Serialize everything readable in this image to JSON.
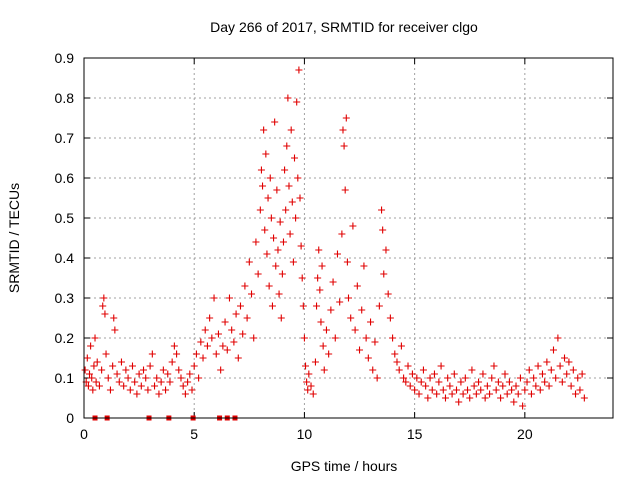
{
  "chart_data": {
    "type": "scatter",
    "title": "Day 266 of 2017, SRMTID for receiver clgo",
    "xlabel": "GPS time / hours",
    "ylabel": "SRMTID / TECUs",
    "xlim": [
      0,
      24
    ],
    "ylim": [
      0,
      0.9
    ],
    "xticks": [
      0,
      5,
      10,
      15,
      20
    ],
    "yticks": [
      0,
      0.1,
      0.2,
      0.3,
      0.4,
      0.5,
      0.6,
      0.7,
      0.8,
      0.9
    ],
    "ytick_labels": [
      "0",
      "0.1",
      "0.2",
      "0.3",
      "0.4",
      "0.5",
      "0.6",
      "0.7",
      "0.8",
      "0.9"
    ],
    "xtick_labels": [
      "0",
      "5",
      "10",
      "15",
      "20"
    ],
    "grid": true,
    "marker": "plus",
    "color": "#e00000",
    "zero_markers_x": [
      0.5,
      1.05,
      2.95,
      3.85,
      4.95,
      6.15,
      6.5,
      6.85
    ],
    "series": [
      {
        "name": "SRMTID",
        "points": [
          [
            0.05,
            0.12
          ],
          [
            0.1,
            0.09
          ],
          [
            0.15,
            0.15
          ],
          [
            0.2,
            0.08
          ],
          [
            0.25,
            0.11
          ],
          [
            0.3,
            0.18
          ],
          [
            0.35,
            0.1
          ],
          [
            0.4,
            0.07
          ],
          [
            0.45,
            0.13
          ],
          [
            0.5,
            0.2
          ],
          [
            0.55,
            0.09
          ],
          [
            0.6,
            0.14
          ],
          [
            0.7,
            0.08
          ],
          [
            0.8,
            0.12
          ],
          [
            0.85,
            0.28
          ],
          [
            0.9,
            0.3
          ],
          [
            0.95,
            0.26
          ],
          [
            1.0,
            0.16
          ],
          [
            1.1,
            0.1
          ],
          [
            1.2,
            0.07
          ],
          [
            1.3,
            0.13
          ],
          [
            1.35,
            0.25
          ],
          [
            1.4,
            0.22
          ],
          [
            1.5,
            0.11
          ],
          [
            1.6,
            0.09
          ],
          [
            1.7,
            0.14
          ],
          [
            1.8,
            0.08
          ],
          [
            1.9,
            0.12
          ],
          [
            2.0,
            0.1
          ],
          [
            2.1,
            0.07
          ],
          [
            2.2,
            0.13
          ],
          [
            2.3,
            0.09
          ],
          [
            2.4,
            0.06
          ],
          [
            2.5,
            0.11
          ],
          [
            2.6,
            0.08
          ],
          [
            2.7,
            0.12
          ],
          [
            2.8,
            0.1
          ],
          [
            2.9,
            0.07
          ],
          [
            3.0,
            0.13
          ],
          [
            3.1,
            0.16
          ],
          [
            3.2,
            0.08
          ],
          [
            3.3,
            0.1
          ],
          [
            3.4,
            0.06
          ],
          [
            3.5,
            0.09
          ],
          [
            3.6,
            0.12
          ],
          [
            3.7,
            0.07
          ],
          [
            3.8,
            0.11
          ],
          [
            3.9,
            0.09
          ],
          [
            4.0,
            0.14
          ],
          [
            4.1,
            0.18
          ],
          [
            4.2,
            0.16
          ],
          [
            4.3,
            0.12
          ],
          [
            4.4,
            0.1
          ],
          [
            4.5,
            0.08
          ],
          [
            4.6,
            0.06
          ],
          [
            4.7,
            0.09
          ],
          [
            4.8,
            0.11
          ],
          [
            4.9,
            0.07
          ],
          [
            5.0,
            0.13
          ],
          [
            5.1,
            0.16
          ],
          [
            5.2,
            0.1
          ],
          [
            5.3,
            0.19
          ],
          [
            5.4,
            0.15
          ],
          [
            5.5,
            0.22
          ],
          [
            5.6,
            0.18
          ],
          [
            5.7,
            0.25
          ],
          [
            5.8,
            0.2
          ],
          [
            5.9,
            0.3
          ],
          [
            6.0,
            0.16
          ],
          [
            6.1,
            0.21
          ],
          [
            6.2,
            0.12
          ],
          [
            6.3,
            0.18
          ],
          [
            6.4,
            0.24
          ],
          [
            6.5,
            0.17
          ],
          [
            6.6,
            0.3
          ],
          [
            6.7,
            0.22
          ],
          [
            6.8,
            0.19
          ],
          [
            6.9,
            0.26
          ],
          [
            7.0,
            0.15
          ],
          [
            7.1,
            0.28
          ],
          [
            7.2,
            0.21
          ],
          [
            7.3,
            0.33
          ],
          [
            7.4,
            0.25
          ],
          [
            7.5,
            0.39
          ],
          [
            7.6,
            0.31
          ],
          [
            7.7,
            0.2
          ],
          [
            7.8,
            0.44
          ],
          [
            7.9,
            0.36
          ],
          [
            8.0,
            0.52
          ],
          [
            8.05,
            0.62
          ],
          [
            8.1,
            0.58
          ],
          [
            8.15,
            0.72
          ],
          [
            8.2,
            0.47
          ],
          [
            8.25,
            0.66
          ],
          [
            8.3,
            0.41
          ],
          [
            8.35,
            0.55
          ],
          [
            8.4,
            0.33
          ],
          [
            8.45,
            0.6
          ],
          [
            8.5,
            0.5
          ],
          [
            8.55,
            0.28
          ],
          [
            8.6,
            0.45
          ],
          [
            8.65,
            0.74
          ],
          [
            8.7,
            0.38
          ],
          [
            8.75,
            0.57
          ],
          [
            8.8,
            0.42
          ],
          [
            8.85,
            0.31
          ],
          [
            8.9,
            0.49
          ],
          [
            8.95,
            0.25
          ],
          [
            9.0,
            0.36
          ],
          [
            9.05,
            0.44
          ],
          [
            9.1,
            0.62
          ],
          [
            9.15,
            0.52
          ],
          [
            9.2,
            0.68
          ],
          [
            9.25,
            0.8
          ],
          [
            9.3,
            0.58
          ],
          [
            9.35,
            0.46
          ],
          [
            9.4,
            0.72
          ],
          [
            9.45,
            0.54
          ],
          [
            9.5,
            0.39
          ],
          [
            9.55,
            0.65
          ],
          [
            9.6,
            0.5
          ],
          [
            9.65,
            0.79
          ],
          [
            9.7,
            0.6
          ],
          [
            9.75,
            0.87
          ],
          [
            9.8,
            0.55
          ],
          [
            9.85,
            0.43
          ],
          [
            9.9,
            0.35
          ],
          [
            9.95,
            0.28
          ],
          [
            10.0,
            0.2
          ],
          [
            10.05,
            0.13
          ],
          [
            10.1,
            0.09
          ],
          [
            10.15,
            0.07
          ],
          [
            10.2,
            0.11
          ],
          [
            10.3,
            0.08
          ],
          [
            10.4,
            0.06
          ],
          [
            10.5,
            0.14
          ],
          [
            10.55,
            0.28
          ],
          [
            10.6,
            0.35
          ],
          [
            10.65,
            0.42
          ],
          [
            10.7,
            0.32
          ],
          [
            10.75,
            0.24
          ],
          [
            10.8,
            0.38
          ],
          [
            10.85,
            0.18
          ],
          [
            10.9,
            0.12
          ],
          [
            11.0,
            0.22
          ],
          [
            11.1,
            0.16
          ],
          [
            11.2,
            0.27
          ],
          [
            11.3,
            0.34
          ],
          [
            11.4,
            0.2
          ],
          [
            11.5,
            0.41
          ],
          [
            11.6,
            0.29
          ],
          [
            11.7,
            0.46
          ],
          [
            11.75,
            0.72
          ],
          [
            11.8,
            0.68
          ],
          [
            11.85,
            0.57
          ],
          [
            11.9,
            0.75
          ],
          [
            11.95,
            0.39
          ],
          [
            12.0,
            0.3
          ],
          [
            12.1,
            0.25
          ],
          [
            12.2,
            0.48
          ],
          [
            12.3,
            0.22
          ],
          [
            12.4,
            0.33
          ],
          [
            12.5,
            0.17
          ],
          [
            12.6,
            0.27
          ],
          [
            12.7,
            0.38
          ],
          [
            12.8,
            0.2
          ],
          [
            12.9,
            0.15
          ],
          [
            13.0,
            0.24
          ],
          [
            13.1,
            0.12
          ],
          [
            13.2,
            0.19
          ],
          [
            13.3,
            0.1
          ],
          [
            13.4,
            0.28
          ],
          [
            13.5,
            0.52
          ],
          [
            13.55,
            0.47
          ],
          [
            13.6,
            0.36
          ],
          [
            13.7,
            0.42
          ],
          [
            13.8,
            0.31
          ],
          [
            13.9,
            0.25
          ],
          [
            14.0,
            0.2
          ],
          [
            14.1,
            0.16
          ],
          [
            14.2,
            0.14
          ],
          [
            14.3,
            0.12
          ],
          [
            14.4,
            0.18
          ],
          [
            14.5,
            0.1
          ],
          [
            14.6,
            0.09
          ],
          [
            14.7,
            0.13
          ],
          [
            14.8,
            0.08
          ],
          [
            14.9,
            0.11
          ],
          [
            15.0,
            0.07
          ],
          [
            15.1,
            0.1
          ],
          [
            15.2,
            0.06
          ],
          [
            15.3,
            0.09
          ],
          [
            15.4,
            0.12
          ],
          [
            15.5,
            0.08
          ],
          [
            15.6,
            0.05
          ],
          [
            15.7,
            0.1
          ],
          [
            15.8,
            0.07
          ],
          [
            15.9,
            0.11
          ],
          [
            16.0,
            0.06
          ],
          [
            16.1,
            0.09
          ],
          [
            16.2,
            0.13
          ],
          [
            16.3,
            0.07
          ],
          [
            16.4,
            0.05
          ],
          [
            16.5,
            0.1
          ],
          [
            16.6,
            0.08
          ],
          [
            16.7,
            0.06
          ],
          [
            16.8,
            0.11
          ],
          [
            16.9,
            0.07
          ],
          [
            17.0,
            0.04
          ],
          [
            17.1,
            0.09
          ],
          [
            17.2,
            0.06
          ],
          [
            17.3,
            0.1
          ],
          [
            17.4,
            0.07
          ],
          [
            17.5,
            0.05
          ],
          [
            17.6,
            0.12
          ],
          [
            17.7,
            0.08
          ],
          [
            17.8,
            0.06
          ],
          [
            17.9,
            0.09
          ],
          [
            18.0,
            0.07
          ],
          [
            18.1,
            0.11
          ],
          [
            18.2,
            0.05
          ],
          [
            18.3,
            0.08
          ],
          [
            18.4,
            0.06
          ],
          [
            18.5,
            0.1
          ],
          [
            18.6,
            0.13
          ],
          [
            18.7,
            0.07
          ],
          [
            18.8,
            0.09
          ],
          [
            18.9,
            0.05
          ],
          [
            19.0,
            0.08
          ],
          [
            19.1,
            0.11
          ],
          [
            19.2,
            0.06
          ],
          [
            19.3,
            0.09
          ],
          [
            19.4,
            0.07
          ],
          [
            19.5,
            0.04
          ],
          [
            19.6,
            0.08
          ],
          [
            19.7,
            0.06
          ],
          [
            19.8,
            0.1
          ],
          [
            19.9,
            0.03
          ],
          [
            20.0,
            0.07
          ],
          [
            20.1,
            0.09
          ],
          [
            20.2,
            0.12
          ],
          [
            20.3,
            0.06
          ],
          [
            20.4,
            0.1
          ],
          [
            20.5,
            0.08
          ],
          [
            20.6,
            0.13
          ],
          [
            20.7,
            0.07
          ],
          [
            20.8,
            0.11
          ],
          [
            20.9,
            0.09
          ],
          [
            21.0,
            0.14
          ],
          [
            21.1,
            0.08
          ],
          [
            21.2,
            0.12
          ],
          [
            21.3,
            0.17
          ],
          [
            21.4,
            0.1
          ],
          [
            21.5,
            0.2
          ],
          [
            21.6,
            0.13
          ],
          [
            21.7,
            0.09
          ],
          [
            21.8,
            0.15
          ],
          [
            21.9,
            0.11
          ],
          [
            22.0,
            0.14
          ],
          [
            22.1,
            0.08
          ],
          [
            22.2,
            0.12
          ],
          [
            22.3,
            0.06
          ],
          [
            22.4,
            0.1
          ],
          [
            22.5,
            0.07
          ],
          [
            22.6,
            0.11
          ],
          [
            22.7,
            0.05
          ]
        ]
      }
    ]
  }
}
